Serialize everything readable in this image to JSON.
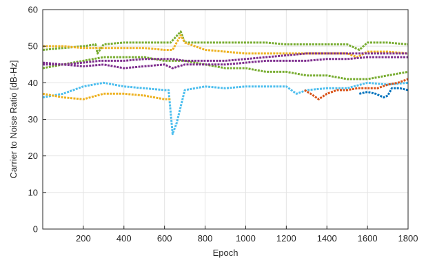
{
  "chart_data": {
    "type": "line",
    "title": "",
    "xlabel": "Epoch",
    "ylabel": "Carrier to Noise Ratio [dB-Hz]",
    "xlim": [
      0,
      1800
    ],
    "ylim": [
      0,
      60
    ],
    "xticks": [
      200,
      400,
      600,
      800,
      1000,
      1200,
      1400,
      1600,
      1800
    ],
    "yticks": [
      0,
      10,
      20,
      30,
      40,
      50,
      60
    ],
    "grid": true,
    "legend": "none",
    "line_style": "dashed",
    "colors": {
      "blue": "#0072BD",
      "orange": "#D95319",
      "yellow": "#EDB120",
      "purple": "#7E2F8E",
      "green": "#77AC30",
      "cyan": "#4DBEEE"
    },
    "series": [
      {
        "color": "#77AC30",
        "x": [
          0,
          100,
          200,
          260,
          270,
          300,
          400,
          500,
          600,
          630,
          680,
          700,
          800,
          900,
          1000,
          1100,
          1200,
          1300,
          1400,
          1500,
          1560,
          1600,
          1700,
          1800
        ],
        "y": [
          49,
          49.5,
          50,
          50.5,
          48,
          50.5,
          51,
          51,
          51,
          51,
          54,
          51,
          51,
          51,
          51,
          51,
          50.5,
          50.5,
          50.5,
          50.5,
          49,
          51,
          51,
          50.5
        ]
      },
      {
        "color": "#EDB120",
        "x": [
          0,
          100,
          200,
          300,
          400,
          500,
          600,
          640,
          680,
          700,
          800,
          900,
          1000,
          1100,
          1200,
          1300,
          1400,
          1500,
          1550,
          1600,
          1700,
          1800
        ],
        "y": [
          50,
          50,
          49.5,
          49.5,
          49.5,
          49.5,
          49,
          49,
          53,
          51,
          49,
          48.5,
          48,
          48,
          48,
          48,
          48,
          48,
          47,
          48.5,
          48.5,
          48
        ]
      },
      {
        "color": "#77AC30",
        "x": [
          0,
          100,
          200,
          300,
          400,
          500,
          600,
          640,
          700,
          800,
          900,
          1000,
          1100,
          1200,
          1300,
          1400,
          1500,
          1600,
          1700,
          1800
        ],
        "y": [
          44,
          45,
          46,
          47,
          47,
          47,
          46,
          46,
          46,
          45,
          44,
          44,
          43,
          43,
          42,
          42,
          41,
          41,
          42,
          43
        ]
      },
      {
        "color": "#7E2F8E",
        "x": [
          0,
          100,
          200,
          280,
          300,
          400,
          500,
          600,
          640,
          700,
          800,
          900,
          1000,
          1100,
          1200,
          1300,
          1400,
          1500,
          1600,
          1700,
          1800
        ],
        "y": [
          45,
          45,
          45.5,
          46,
          46,
          46,
          46.5,
          46.5,
          46.5,
          46,
          46,
          46,
          46.5,
          47,
          47.5,
          48,
          48,
          48,
          48,
          48,
          48
        ]
      },
      {
        "color": "#7E2F8E",
        "x": [
          0,
          100,
          200,
          300,
          400,
          500,
          600,
          640,
          700,
          800,
          900,
          1000,
          1100,
          1200,
          1300,
          1400,
          1500,
          1600,
          1700,
          1800
        ],
        "y": [
          45.5,
          45,
          44.5,
          45,
          44,
          44.5,
          45,
          44,
          45,
          45,
          45,
          45.5,
          46,
          46,
          46,
          46.5,
          46.5,
          47,
          47,
          47
        ]
      },
      {
        "color": "#4DBEEE",
        "x": [
          0,
          100,
          200,
          300,
          400,
          500,
          600,
          620,
          640,
          660,
          700,
          800,
          900,
          1000,
          1100,
          1200,
          1250,
          1300,
          1400,
          1500,
          1600,
          1700,
          1800
        ],
        "y": [
          36,
          37,
          39,
          40,
          39,
          38.5,
          38,
          38,
          26,
          29,
          38,
          39,
          38.5,
          39,
          39,
          39,
          37,
          38,
          38.5,
          38.5,
          40,
          39.5,
          40
        ]
      },
      {
        "color": "#EDB120",
        "x": [
          0,
          100,
          200,
          300,
          400,
          500,
          600,
          630
        ],
        "y": [
          37,
          36,
          35.5,
          37,
          37,
          36.5,
          35.5,
          35.5
        ]
      },
      {
        "color": "#D95319",
        "x": [
          1290,
          1320,
          1360,
          1400,
          1450,
          1500,
          1550,
          1600,
          1650,
          1700,
          1750,
          1800
        ],
        "y": [
          38,
          37,
          35.5,
          37,
          38,
          38,
          38.5,
          38.5,
          38.5,
          39.5,
          40,
          41
        ]
      },
      {
        "color": "#0072BD",
        "x": [
          1560,
          1600,
          1640,
          1680,
          1700,
          1720,
          1760,
          1800
        ],
        "y": [
          37,
          37.5,
          37,
          36,
          36.5,
          38.5,
          38.5,
          38
        ]
      }
    ]
  }
}
